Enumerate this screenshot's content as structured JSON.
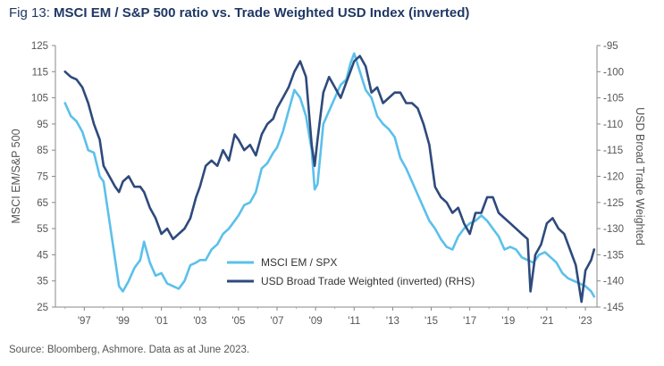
{
  "figure": {
    "prefix": "Fig 13: ",
    "title": "MSCI EM / S&P 500 ratio vs. Trade Weighted USD Index (inverted)",
    "source": "Source: Bloomberg, Ashmore. Data as at June 2023."
  },
  "chart_data": {
    "type": "line",
    "title": "MSCI EM / S&P 500 ratio vs. Trade Weighted USD Index (inverted)",
    "xlabel": "",
    "ylabel": "MSCI EM/S&P 500",
    "y2label": "USD Broad Trade Weighted",
    "xlim": [
      1995.5,
      2023.6
    ],
    "ylim": [
      25,
      125
    ],
    "y2lim": [
      -145,
      -95
    ],
    "x_ticks": [
      1997,
      1999,
      2001,
      2003,
      2005,
      2007,
      2009,
      2011,
      2013,
      2015,
      2017,
      2019,
      2021,
      2023
    ],
    "x_tick_labels": [
      "'97",
      "'99",
      "'01",
      "'03",
      "'05",
      "'07",
      "'09",
      "'11",
      "'13",
      "'15",
      "'17",
      "'19",
      "'21",
      "'23"
    ],
    "y_ticks": [
      25,
      35,
      45,
      55,
      65,
      75,
      85,
      95,
      105,
      115,
      125
    ],
    "y2_ticks": [
      -95,
      -100,
      -105,
      -110,
      -115,
      -120,
      -125,
      -130,
      -135,
      -140,
      -145
    ],
    "grid": false,
    "legend_position": "bottom-center",
    "series": [
      {
        "name": "MSCI EM / SPX",
        "axis": "left",
        "color": "#5bc0eb",
        "x": [
          1996.0,
          1996.3,
          1996.6,
          1996.9,
          1997.2,
          1997.5,
          1997.8,
          1998.0,
          1998.3,
          1998.6,
          1998.8,
          1999.0,
          1999.3,
          1999.6,
          1999.9,
          2000.1,
          2000.4,
          2000.7,
          2001.0,
          2001.3,
          2001.6,
          2001.9,
          2002.2,
          2002.5,
          2002.8,
          2003.0,
          2003.3,
          2003.6,
          2003.9,
          2004.2,
          2004.5,
          2004.8,
          2005.0,
          2005.3,
          2005.6,
          2005.9,
          2006.2,
          2006.5,
          2006.8,
          2007.0,
          2007.3,
          2007.6,
          2007.9,
          2008.2,
          2008.5,
          2008.8,
          2008.95,
          2009.1,
          2009.4,
          2009.7,
          2010.0,
          2010.3,
          2010.6,
          2010.8,
          2011.0,
          2011.3,
          2011.6,
          2011.9,
          2012.2,
          2012.5,
          2012.8,
          2013.1,
          2013.4,
          2013.7,
          2014.0,
          2014.3,
          2014.6,
          2014.9,
          2015.2,
          2015.5,
          2015.8,
          2016.1,
          2016.4,
          2016.7,
          2017.0,
          2017.3,
          2017.6,
          2017.9,
          2018.2,
          2018.5,
          2018.8,
          2019.1,
          2019.4,
          2019.7,
          2020.0,
          2020.3,
          2020.6,
          2020.9,
          2021.2,
          2021.5,
          2021.8,
          2022.1,
          2022.4,
          2022.7,
          2023.0,
          2023.3,
          2023.45
        ],
        "values": [
          103,
          98,
          96,
          92,
          85,
          84,
          75,
          73,
          58,
          43,
          33,
          31,
          35,
          40,
          43,
          50,
          42,
          37,
          38,
          34,
          33,
          32,
          35,
          41,
          42,
          43,
          43,
          47,
          49,
          53,
          55,
          58,
          60,
          64,
          65,
          69,
          78,
          80,
          84,
          86,
          92,
          100,
          108,
          105,
          98,
          85,
          70,
          72,
          95,
          100,
          105,
          110,
          112,
          118,
          122,
          115,
          108,
          105,
          98,
          95,
          93,
          90,
          82,
          78,
          73,
          68,
          63,
          58,
          55,
          51,
          48,
          47,
          52,
          55,
          57,
          58,
          60,
          58,
          55,
          52,
          47,
          48,
          47,
          44,
          43,
          42,
          45,
          46,
          44,
          42,
          38,
          36,
          35,
          34,
          33,
          31,
          29
        ]
      },
      {
        "name": "USD Broad Trade Weighted (inverted) (RHS)",
        "axis": "right",
        "color": "#2e4a7c",
        "x": [
          1996.0,
          1996.3,
          1996.6,
          1996.9,
          1997.2,
          1997.5,
          1997.8,
          1998.0,
          1998.3,
          1998.6,
          1998.8,
          1999.0,
          1999.3,
          1999.6,
          1999.9,
          2000.1,
          2000.4,
          2000.7,
          2001.0,
          2001.3,
          2001.6,
          2001.9,
          2002.2,
          2002.5,
          2002.8,
          2003.0,
          2003.3,
          2003.6,
          2003.9,
          2004.2,
          2004.5,
          2004.8,
          2005.0,
          2005.3,
          2005.6,
          2005.9,
          2006.2,
          2006.5,
          2006.8,
          2007.0,
          2007.3,
          2007.6,
          2007.9,
          2008.2,
          2008.5,
          2008.8,
          2008.95,
          2009.1,
          2009.4,
          2009.7,
          2010.0,
          2010.3,
          2010.6,
          2010.8,
          2011.0,
          2011.3,
          2011.6,
          2011.9,
          2012.2,
          2012.5,
          2012.8,
          2013.1,
          2013.4,
          2013.7,
          2014.0,
          2014.3,
          2014.6,
          2014.9,
          2015.2,
          2015.5,
          2015.8,
          2016.1,
          2016.4,
          2016.7,
          2017.0,
          2017.3,
          2017.6,
          2017.9,
          2018.2,
          2018.5,
          2018.8,
          2019.1,
          2019.4,
          2019.7,
          2020.0,
          2020.15,
          2020.4,
          2020.7,
          2021.0,
          2021.3,
          2021.6,
          2021.9,
          2022.2,
          2022.5,
          2022.8,
          2023.0,
          2023.3,
          2023.45
        ],
        "values": [
          -100,
          -101,
          -101.5,
          -103,
          -106,
          -110,
          -113,
          -118,
          -120,
          -122,
          -123,
          -121,
          -120,
          -122,
          -122,
          -123,
          -126,
          -128,
          -131,
          -130,
          -132,
          -131,
          -130,
          -128,
          -124,
          -122,
          -118,
          -117,
          -118,
          -115,
          -117,
          -112,
          -113,
          -115,
          -114,
          -116,
          -112,
          -110,
          -109,
          -107,
          -105,
          -103,
          -100,
          -98,
          -101,
          -114,
          -118,
          -113,
          -104,
          -101,
          -103,
          -105,
          -102,
          -100,
          -98,
          -97,
          -99,
          -104,
          -103,
          -106,
          -105,
          -104,
          -104,
          -106,
          -106,
          -107,
          -110,
          -114,
          -122,
          -124,
          -125,
          -127,
          -126,
          -129,
          -131,
          -127,
          -127,
          -124,
          -124,
          -127,
          -128,
          -129,
          -130,
          -131,
          -132,
          -142,
          -135,
          -133,
          -129,
          -128,
          -130,
          -131,
          -134,
          -137,
          -144,
          -138,
          -136,
          -134
        ]
      }
    ]
  }
}
